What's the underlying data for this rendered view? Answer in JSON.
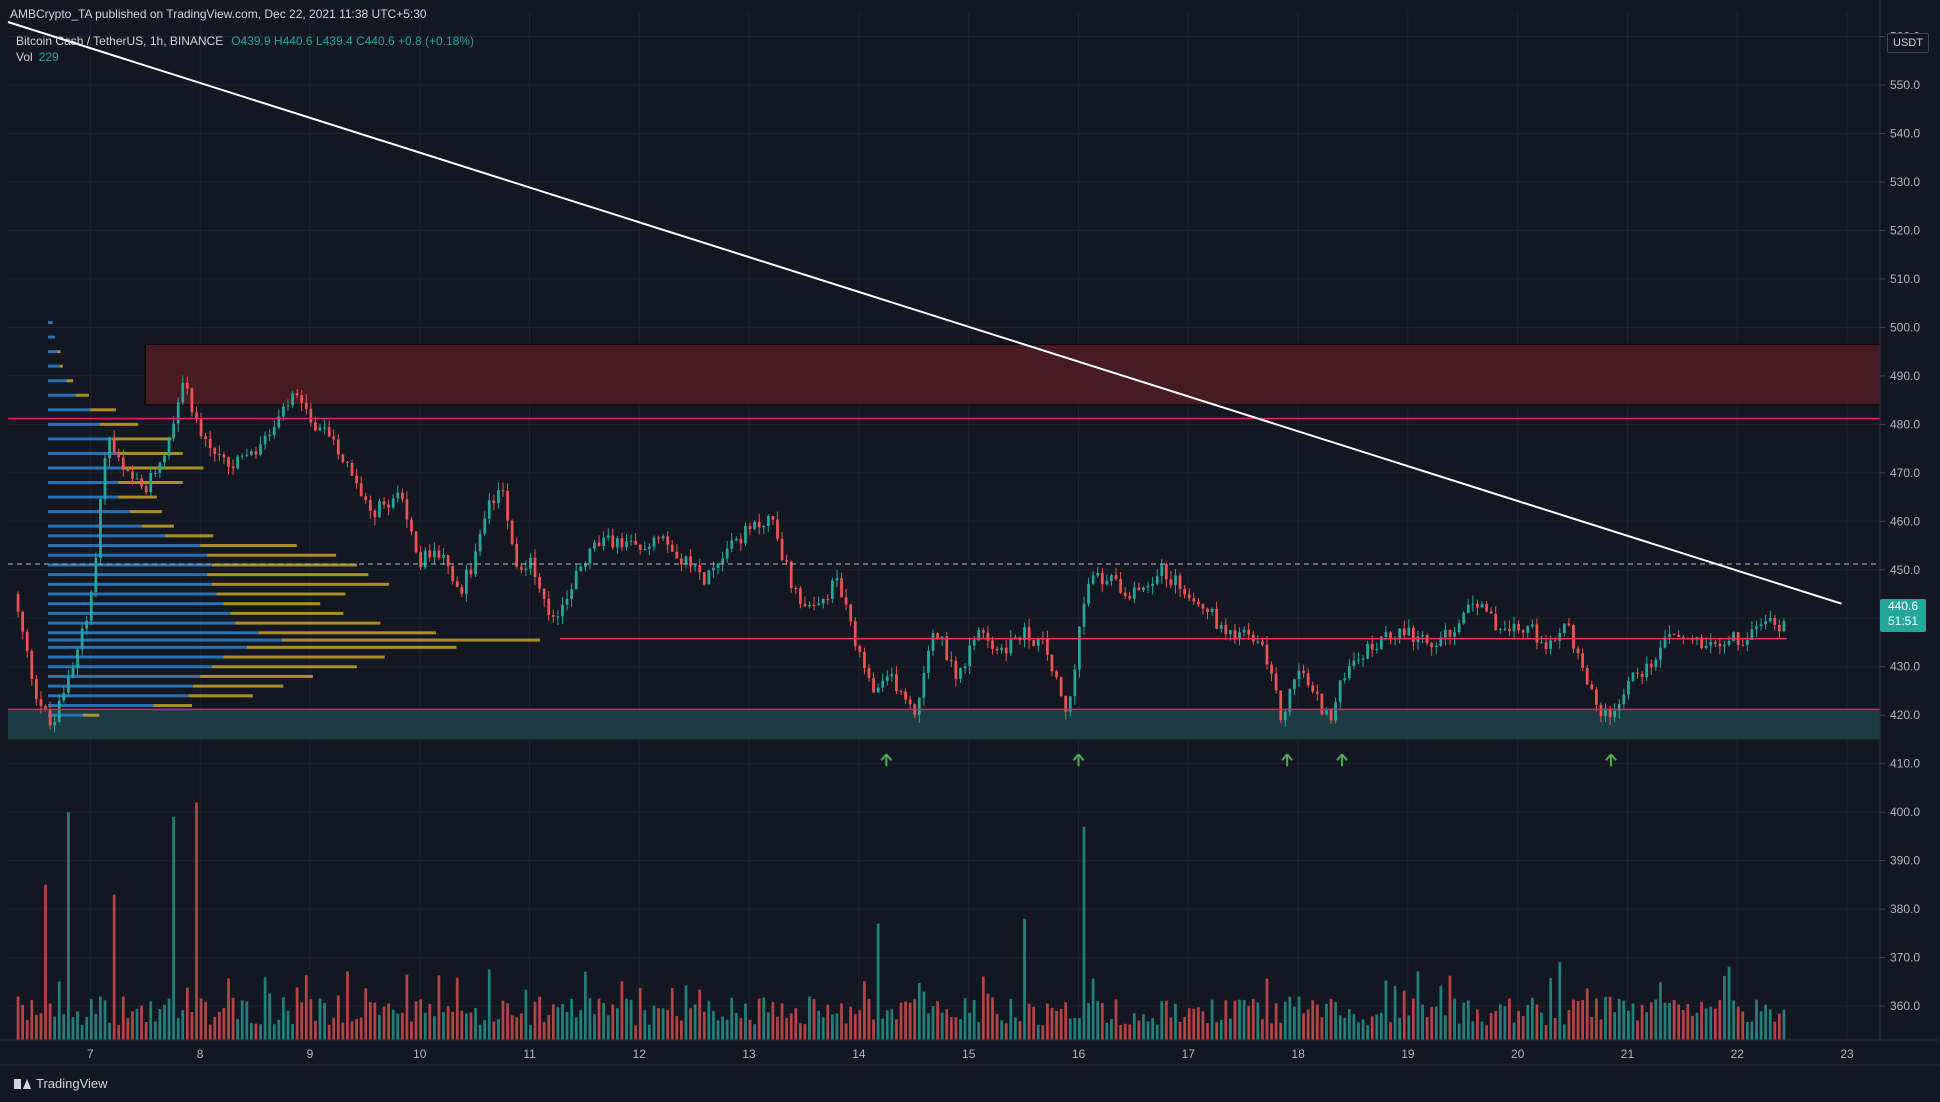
{
  "header": {
    "published": "AMBCrypto_TA published on TradingView.com, Dec 22, 2021 11:38 UTC+5:30"
  },
  "legend": {
    "symbol": "Bitcoin Cash / TetherUS, 1h, BINANCE",
    "ohlc": "O439.9 H440.6 L439.4 C440.6 +0.8 (+0.18%)",
    "vol_label": "Vol",
    "vol_value": "229"
  },
  "currency_button": "USDT",
  "last_price": {
    "price": "440.6",
    "countdown": "51:51"
  },
  "brand": "TradingView",
  "colors": {
    "bg": "#131722",
    "grid": "#1e222d",
    "up": "#26a69a",
    "down": "#ef5350",
    "resistance_zone": "#4a1c22",
    "support_zone": "#1e3d45",
    "profile_blue": "#2a7bc5",
    "profile_gold": "#c9a227",
    "trendline": "#ffffff",
    "signal_arrow": "#4caf50"
  },
  "chart_data": {
    "type": "candlestick",
    "symbol": "Bitcoin Cash / TetherUS",
    "interval": "1h",
    "exchange": "BINANCE",
    "x_ticks": [
      "7",
      "8",
      "9",
      "10",
      "11",
      "12",
      "13",
      "14",
      "15",
      "16",
      "17",
      "18",
      "19",
      "20",
      "21",
      "22",
      "23"
    ],
    "xlim_days": [
      6.25,
      23.3
    ],
    "y_ticks": [
      "360.0",
      "370.0",
      "380.0",
      "390.0",
      "400.0",
      "410.0",
      "420.0",
      "430.0",
      "440.0",
      "450.0",
      "460.0",
      "470.0",
      "480.0",
      "490.0",
      "500.0",
      "510.0",
      "520.0",
      "530.0",
      "540.0",
      "550.0",
      "560.0"
    ],
    "ylim": [
      353,
      563
    ],
    "grid": true,
    "price_path": [
      [
        6.3,
        445
      ],
      [
        6.5,
        425
      ],
      [
        6.65,
        417
      ],
      [
        6.8,
        428
      ],
      [
        7.0,
        442
      ],
      [
        7.15,
        478
      ],
      [
        7.3,
        470
      ],
      [
        7.5,
        466
      ],
      [
        7.7,
        476
      ],
      [
        7.85,
        490
      ],
      [
        8.0,
        478
      ],
      [
        8.25,
        471
      ],
      [
        8.5,
        474
      ],
      [
        8.7,
        480
      ],
      [
        8.85,
        486
      ],
      [
        9.0,
        481
      ],
      [
        9.2,
        478
      ],
      [
        9.4,
        468
      ],
      [
        9.6,
        462
      ],
      [
        9.8,
        466
      ],
      [
        10.0,
        452
      ],
      [
        10.2,
        454
      ],
      [
        10.35,
        445
      ],
      [
        10.5,
        452
      ],
      [
        10.6,
        462
      ],
      [
        10.75,
        468
      ],
      [
        10.9,
        449
      ],
      [
        11.0,
        452
      ],
      [
        11.2,
        438
      ],
      [
        11.4,
        448
      ],
      [
        11.6,
        455
      ],
      [
        11.8,
        456
      ],
      [
        12.0,
        454
      ],
      [
        12.2,
        458
      ],
      [
        12.4,
        452
      ],
      [
        12.6,
        448
      ],
      [
        12.8,
        455
      ],
      [
        13.0,
        458
      ],
      [
        13.2,
        461
      ],
      [
        13.4,
        446
      ],
      [
        13.6,
        441
      ],
      [
        13.8,
        448
      ],
      [
        14.0,
        432
      ],
      [
        14.15,
        424
      ],
      [
        14.3,
        428
      ],
      [
        14.5,
        420
      ],
      [
        14.7,
        438
      ],
      [
        14.9,
        428
      ],
      [
        15.1,
        437
      ],
      [
        15.3,
        433
      ],
      [
        15.5,
        437
      ],
      [
        15.7,
        434
      ],
      [
        15.9,
        419
      ],
      [
        16.0,
        437
      ],
      [
        16.1,
        448
      ],
      [
        16.3,
        448
      ],
      [
        16.5,
        445
      ],
      [
        16.75,
        450
      ],
      [
        16.9,
        447
      ],
      [
        17.1,
        444
      ],
      [
        17.3,
        438
      ],
      [
        17.5,
        437
      ],
      [
        17.7,
        433
      ],
      [
        17.85,
        419
      ],
      [
        18.0,
        430
      ],
      [
        18.15,
        424
      ],
      [
        18.3,
        419
      ],
      [
        18.45,
        431
      ],
      [
        18.6,
        433
      ],
      [
        18.8,
        436
      ],
      [
        19.0,
        437
      ],
      [
        19.2,
        434
      ],
      [
        19.4,
        437
      ],
      [
        19.55,
        444
      ],
      [
        19.7,
        441
      ],
      [
        19.9,
        437
      ],
      [
        20.1,
        438
      ],
      [
        20.3,
        434
      ],
      [
        20.45,
        439
      ],
      [
        20.6,
        429
      ],
      [
        20.75,
        421
      ],
      [
        20.85,
        419
      ],
      [
        21.0,
        427
      ],
      [
        21.2,
        430
      ],
      [
        21.35,
        437
      ],
      [
        21.5,
        436
      ],
      [
        21.7,
        435
      ],
      [
        21.9,
        436
      ],
      [
        22.05,
        435
      ],
      [
        22.15,
        437
      ],
      [
        22.25,
        440
      ],
      [
        22.35,
        438
      ],
      [
        22.45,
        440.6
      ]
    ],
    "volume_spikes": [
      [
        6.6,
        385
      ],
      [
        6.8,
        400
      ],
      [
        7.2,
        383
      ],
      [
        7.75,
        399
      ],
      [
        7.95,
        402
      ],
      [
        14.15,
        377
      ],
      [
        15.5,
        378
      ],
      [
        16.05,
        397
      ]
    ],
    "volume_profile": {
      "range": [
        417,
        503
      ],
      "buckets": [
        [
          420,
          0.15,
          0.05
        ],
        [
          422,
          0.45,
          0.12
        ],
        [
          424,
          0.6,
          0.2
        ],
        [
          426,
          0.62,
          0.28
        ],
        [
          428,
          0.65,
          0.35
        ],
        [
          430,
          0.7,
          0.45
        ],
        [
          432,
          0.75,
          0.5
        ],
        [
          434,
          0.85,
          0.65
        ],
        [
          435.5,
          1.0,
          0.8
        ],
        [
          437,
          0.9,
          0.55
        ],
        [
          439,
          0.8,
          0.45
        ],
        [
          441,
          0.78,
          0.35
        ],
        [
          443,
          0.75,
          0.3
        ],
        [
          445,
          0.72,
          0.4
        ],
        [
          447,
          0.7,
          0.55
        ],
        [
          449,
          0.68,
          0.5
        ],
        [
          451,
          0.7,
          0.45
        ],
        [
          453,
          0.68,
          0.4
        ],
        [
          455,
          0.65,
          0.3
        ],
        [
          457,
          0.5,
          0.15
        ],
        [
          459,
          0.4,
          0.1
        ],
        [
          462,
          0.35,
          0.1
        ],
        [
          465,
          0.3,
          0.12
        ],
        [
          468,
          0.3,
          0.2
        ],
        [
          471,
          0.32,
          0.25
        ],
        [
          474,
          0.3,
          0.2
        ],
        [
          477,
          0.28,
          0.18
        ],
        [
          480,
          0.22,
          0.12
        ],
        [
          483,
          0.18,
          0.08
        ],
        [
          486,
          0.12,
          0.04
        ],
        [
          489,
          0.08,
          0.02
        ],
        [
          492,
          0.05,
          0.01
        ],
        [
          495,
          0.04,
          0.01
        ],
        [
          498,
          0.03,
          0
        ],
        [
          501,
          0.02,
          0
        ]
      ]
    },
    "annotations": {
      "resistance_zone": [
        484,
        496.5
      ],
      "resistance_zone_start_day": 7.5,
      "resistance_line": 481.2,
      "poc_line": 435.8,
      "poc_line_end_day": 22.45,
      "dashed_line": 451.2,
      "support_line": 421.2,
      "support_zone": [
        415,
        421.2
      ],
      "trendline": [
        [
          6.25,
          563
        ],
        [
          22.95,
          443
        ]
      ],
      "signal_arrows_days": [
        14.25,
        16.0,
        17.9,
        18.4,
        20.85
      ],
      "signal_arrows_price": 410.7
    }
  }
}
